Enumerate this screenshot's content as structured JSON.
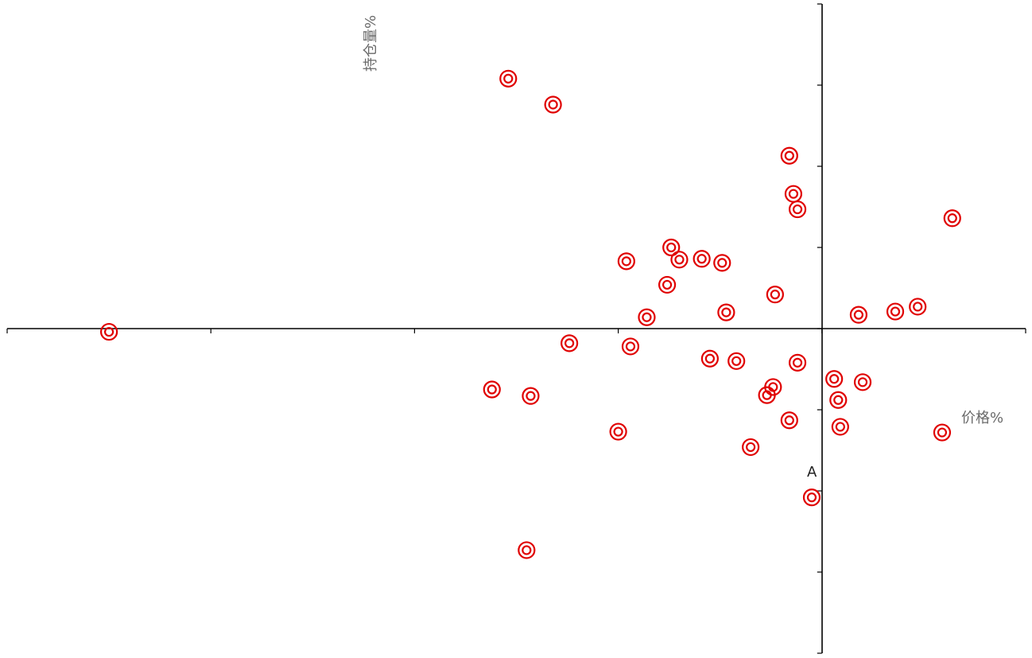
{
  "chart_data": {
    "type": "scatter",
    "title": "",
    "xlabel": "价格%",
    "ylabel": "持仓量%",
    "xlim": [
      -4,
      1
    ],
    "ylim": [
      -4,
      4
    ],
    "grid": false,
    "legend": "none",
    "marker_color": "#e00000",
    "annotations": [
      {
        "text": "A",
        "x": -0.05,
        "y": -1.75
      }
    ],
    "series": [
      {
        "points": [
          {
            "x": -3.5,
            "y": -0.04
          },
          {
            "x": -1.54,
            "y": 3.08
          },
          {
            "x": -1.32,
            "y": 2.76
          },
          {
            "x": -0.16,
            "y": 2.13
          },
          {
            "x": -0.14,
            "y": 1.66
          },
          {
            "x": -0.12,
            "y": 1.47
          },
          {
            "x": 0.64,
            "y": 1.36
          },
          {
            "x": -0.74,
            "y": 1.0
          },
          {
            "x": -0.7,
            "y": 0.85
          },
          {
            "x": -0.59,
            "y": 0.86
          },
          {
            "x": -0.49,
            "y": 0.81
          },
          {
            "x": -0.96,
            "y": 0.83
          },
          {
            "x": -0.76,
            "y": 0.54
          },
          {
            "x": -0.23,
            "y": 0.42
          },
          {
            "x": -0.47,
            "y": 0.2
          },
          {
            "x": -0.86,
            "y": 0.14
          },
          {
            "x": 0.18,
            "y": 0.17
          },
          {
            "x": 0.36,
            "y": 0.21
          },
          {
            "x": 0.47,
            "y": 0.27
          },
          {
            "x": -1.24,
            "y": -0.18
          },
          {
            "x": -0.94,
            "y": -0.22
          },
          {
            "x": -0.55,
            "y": -0.37
          },
          {
            "x": -0.42,
            "y": -0.4
          },
          {
            "x": -0.12,
            "y": -0.42
          },
          {
            "x": 0.06,
            "y": -0.62
          },
          {
            "x": 0.2,
            "y": -0.66
          },
          {
            "x": -0.24,
            "y": -0.72
          },
          {
            "x": -0.27,
            "y": -0.82
          },
          {
            "x": 0.08,
            "y": -0.88
          },
          {
            "x": -1.62,
            "y": -0.75
          },
          {
            "x": -1.43,
            "y": -0.83
          },
          {
            "x": -0.16,
            "y": -1.13
          },
          {
            "x": 0.09,
            "y": -1.21
          },
          {
            "x": -1.0,
            "y": -1.27
          },
          {
            "x": 0.59,
            "y": -1.28
          },
          {
            "x": -0.35,
            "y": -1.46
          },
          {
            "x": -0.05,
            "y": -2.08
          },
          {
            "x": -1.45,
            "y": -2.73
          }
        ]
      }
    ]
  }
}
